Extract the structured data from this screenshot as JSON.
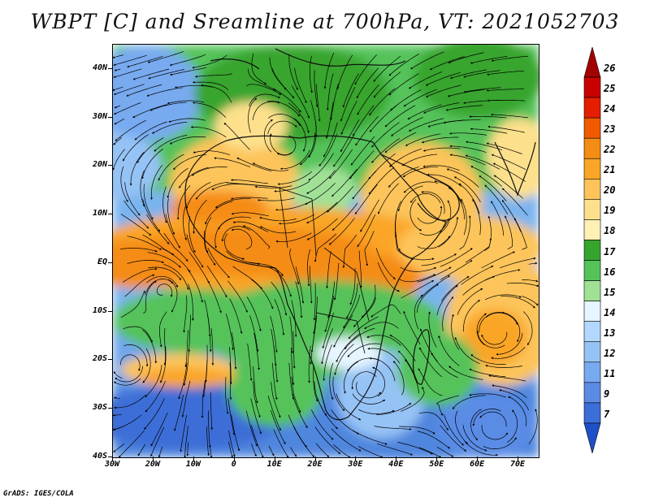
{
  "title": "WBPT [C] and Sreamline at 700hPa, VT: 2021052703",
  "credit": "GrADS: IGES/COLA",
  "y_axis": {
    "labels": [
      "40N",
      "30N",
      "20N",
      "10N",
      "EQ",
      "10S",
      "20S",
      "30S",
      "40S"
    ],
    "lat_values": [
      40,
      30,
      20,
      10,
      0,
      -10,
      -20,
      -30,
      -40
    ]
  },
  "x_axis": {
    "labels": [
      "30W",
      "20W",
      "10W",
      "0",
      "10E",
      "20E",
      "30E",
      "40E",
      "50E",
      "60E",
      "70E"
    ],
    "lon_values": [
      -30,
      -20,
      -10,
      0,
      10,
      20,
      30,
      40,
      50,
      60,
      70
    ]
  },
  "map_extent": {
    "lon_min": -30,
    "lon_max": 75,
    "lat_min": -40,
    "lat_max": 45
  },
  "colorbar": {
    "labels": [
      "26",
      "25",
      "24",
      "23",
      "22",
      "21",
      "20",
      "19",
      "18",
      "17",
      "16",
      "15",
      "14",
      "13",
      "12",
      "11",
      "9",
      "7"
    ],
    "colors": [
      "#a50000",
      "#c80000",
      "#e61e00",
      "#f05a00",
      "#f58c14",
      "#faa528",
      "#fcc45a",
      "#fde08c",
      "#fff0b4",
      "#37a52d",
      "#55c35a",
      "#a0e196",
      "#e6f5ff",
      "#b4d7ff",
      "#96c3f5",
      "#78aaf0",
      "#5a8ce6",
      "#3c6ed7",
      "#1e50c8"
    ]
  },
  "fields": {
    "variable": "WBPT",
    "units": "C",
    "level": "700hPa",
    "valid_time": "2021052703"
  }
}
